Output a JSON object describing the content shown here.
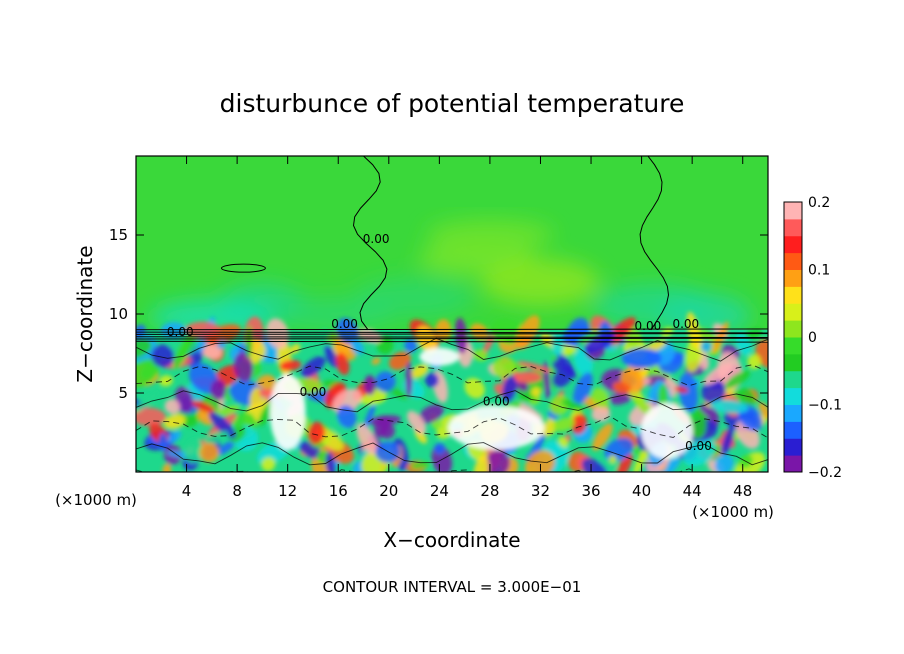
{
  "chart_data": {
    "type": "heatmap",
    "title": "disturbunce of potential temperature",
    "xlabel": "X−coordinate",
    "ylabel": "Z−coordinate",
    "x_unit_left": "(×1000 m)",
    "x_unit_right": "(×1000 m)",
    "xlim": [
      0,
      50
    ],
    "ylim": [
      0,
      20
    ],
    "xticks": [
      4,
      8,
      12,
      16,
      20,
      24,
      28,
      32,
      36,
      40,
      44,
      48
    ],
    "xtick_labels": [
      "4",
      "8",
      "12",
      "16",
      "20",
      "24",
      "28",
      "32",
      "36",
      "40",
      "44",
      "48"
    ],
    "yticks": [
      5,
      10,
      15
    ],
    "ytick_labels": [
      "5",
      "10",
      "15"
    ],
    "colorbar": {
      "range": [
        -0.2,
        0.2
      ],
      "ticks": [
        -0.2,
        -0.1,
        0,
        0.1,
        0.2
      ],
      "tick_labels": [
        "−0.2",
        "−0.1",
        "0",
        "0.1",
        "0.2"
      ],
      "colors": [
        "#7a16a8",
        "#2a1ed2",
        "#1c60ff",
        "#1aa8ff",
        "#12dcdc",
        "#1ed88c",
        "#22cc22",
        "#36dc2a",
        "#8ee61e",
        "#d8f01a",
        "#ffe11a",
        "#ffa014",
        "#ff5a14",
        "#ff1e1e",
        "#ff5a5a",
        "#ffb4b4"
      ]
    },
    "contour_labels": [
      "0.00",
      "0.00",
      "0.00",
      "0.00",
      "0.00",
      "0.00",
      "0.00",
      "0.00"
    ],
    "regions": {
      "upper_layer": {
        "z_range": [
          9,
          20
        ],
        "value_approx": 0.02,
        "color": "#3ad83a"
      },
      "inversion_z": 9,
      "lower_layer": {
        "z_range": [
          0,
          9
        ],
        "value_range": [
          -0.2,
          0.2
        ],
        "note_color_dominant": "#1ed88c"
      }
    },
    "footer": "CONTOUR INTERVAL = 3.000E−01"
  }
}
